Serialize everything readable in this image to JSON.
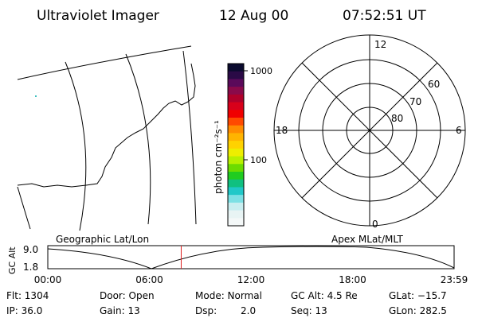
{
  "header": {
    "title": "Ultraviolet Imager",
    "date": "12 Aug 00",
    "time": "07:52:51 UT"
  },
  "colorbar": {
    "label": "photon cm⁻²s⁻¹",
    "ticks": [
      "1000",
      "100"
    ],
    "colors": [
      "#0a0a2e",
      "#2a0a46",
      "#5a0a5a",
      "#8a0a4a",
      "#b0002a",
      "#d8001a",
      "#f00000",
      "#ff4a00",
      "#ff8c00",
      "#ffb400",
      "#ffd200",
      "#eeee00",
      "#b8f000",
      "#6cdc00",
      "#20cc20",
      "#10c080",
      "#20c8c8",
      "#7ce0e4",
      "#c8eef0",
      "#e8f4f4",
      "#f4f8f8"
    ]
  },
  "polar_plot": {
    "mlt_labels": [
      "12",
      "18",
      "6",
      "0"
    ],
    "mlat_labels": [
      "60",
      "70",
      "80"
    ]
  },
  "altitude_plot": {
    "left_title": "Geographic Lat/Lon",
    "right_title": "Apex MLat/MLT",
    "y_label": "GC Alt",
    "y_ticks": [
      "9.0",
      "1.8"
    ],
    "x_ticks": [
      "00:00",
      "06:00",
      "12:00",
      "18:00",
      "23:59"
    ],
    "marker_hour": 7.88,
    "marker_color": "#dd2222"
  },
  "info": {
    "flt": "Flt: 1304",
    "ip": "IP: 36.0",
    "door": "Door: Open",
    "gain": "Gain: 13",
    "mode": "Mode: Normal",
    "dsp_label": "Dsp:",
    "dsp_value": "2.0",
    "gcalt": "GC Alt: 4.5 Re",
    "seq": "Seq: 13",
    "glat": "GLat: −15.7",
    "glon": "GLon: 282.5"
  }
}
